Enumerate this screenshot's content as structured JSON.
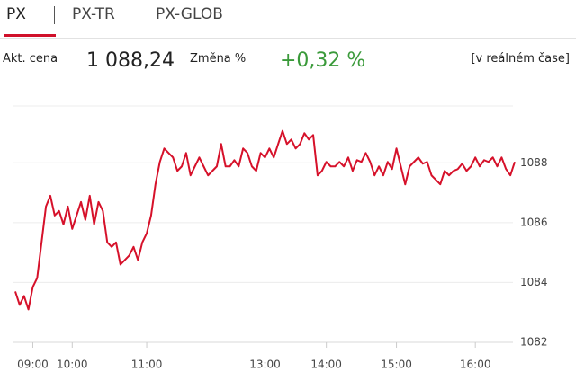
{
  "tabs": [
    "PX",
    "PX-TR",
    "PX-GLOB"
  ],
  "price_label": "Akt. cena",
  "price": "1 088,24",
  "change_label": "Změna %",
  "change": "+0,32 %",
  "realtime": "[v reálném čase]",
  "chart_data": {
    "type": "line",
    "color": "#d6112a",
    "categories": [
      null,
      null,
      null,
      null,
      "09:00",
      null,
      null,
      null,
      null,
      null,
      null,
      null,
      null,
      "10:00",
      null,
      null,
      null,
      null,
      null,
      null,
      null,
      null,
      null,
      null,
      null,
      null,
      null,
      null,
      null,
      null,
      "11:00",
      null,
      null,
      null,
      null,
      null,
      null,
      null,
      null,
      null,
      null,
      null,
      null,
      null,
      null,
      null,
      null,
      null,
      null,
      null,
      null,
      null,
      null,
      null,
      null,
      null,
      null,
      "13:00",
      null,
      null,
      null,
      null,
      null,
      null,
      null,
      null,
      null,
      null,
      null,
      null,
      null,
      "14:00",
      null,
      null,
      null,
      null,
      null,
      null,
      null,
      null,
      null,
      null,
      null,
      null,
      null,
      null,
      null,
      "15:00",
      null,
      null,
      null,
      null,
      null,
      null,
      null,
      null,
      null,
      null,
      null,
      null,
      null,
      null,
      null,
      null,
      null,
      "16:00",
      null,
      null,
      null,
      null,
      null,
      null,
      null,
      null,
      null
    ],
    "values": [
      1083.7,
      1083.25,
      1083.55,
      1083.1,
      1083.85,
      1084.15,
      1085.34,
      1086.54,
      1086.9,
      1086.24,
      1086.39,
      1085.94,
      1086.54,
      1085.79,
      1086.24,
      1086.69,
      1086.09,
      1086.9,
      1085.94,
      1086.69,
      1086.39,
      1085.34,
      1085.19,
      1085.34,
      1084.6,
      1084.75,
      1084.9,
      1085.19,
      1084.75,
      1085.34,
      1085.64,
      1086.24,
      1087.28,
      1088.03,
      1088.48,
      1088.33,
      1088.18,
      1087.73,
      1087.88,
      1088.33,
      1087.58,
      1087.88,
      1088.18,
      1087.88,
      1087.58,
      1087.73,
      1087.88,
      1088.63,
      1087.88,
      1087.88,
      1088.09,
      1087.88,
      1088.48,
      1088.33,
      1087.88,
      1087.73,
      1088.33,
      1088.18,
      1088.48,
      1088.18,
      1088.63,
      1089.07,
      1088.63,
      1088.78,
      1088.48,
      1088.63,
      1088.99,
      1088.78,
      1088.93,
      1087.58,
      1087.73,
      1088.03,
      1087.88,
      1087.88,
      1088.03,
      1087.88,
      1088.18,
      1087.73,
      1088.09,
      1088.03,
      1088.33,
      1088.03,
      1087.58,
      1087.88,
      1087.58,
      1088.03,
      1087.79,
      1088.48,
      1087.88,
      1087.28,
      1087.88,
      1088.03,
      1088.18,
      1087.97,
      1088.03,
      1087.58,
      1087.43,
      1087.28,
      1087.73,
      1087.58,
      1087.73,
      1087.79,
      1087.97,
      1087.73,
      1087.88,
      1088.18,
      1087.88,
      1088.09,
      1088.03,
      1088.18,
      1087.88,
      1088.18,
      1087.79,
      1087.58,
      1088.03
    ],
    "ylim": [
      1082,
      1089.9
    ],
    "yticks": [
      1082,
      1084,
      1086,
      1088
    ],
    "grid": true
  }
}
